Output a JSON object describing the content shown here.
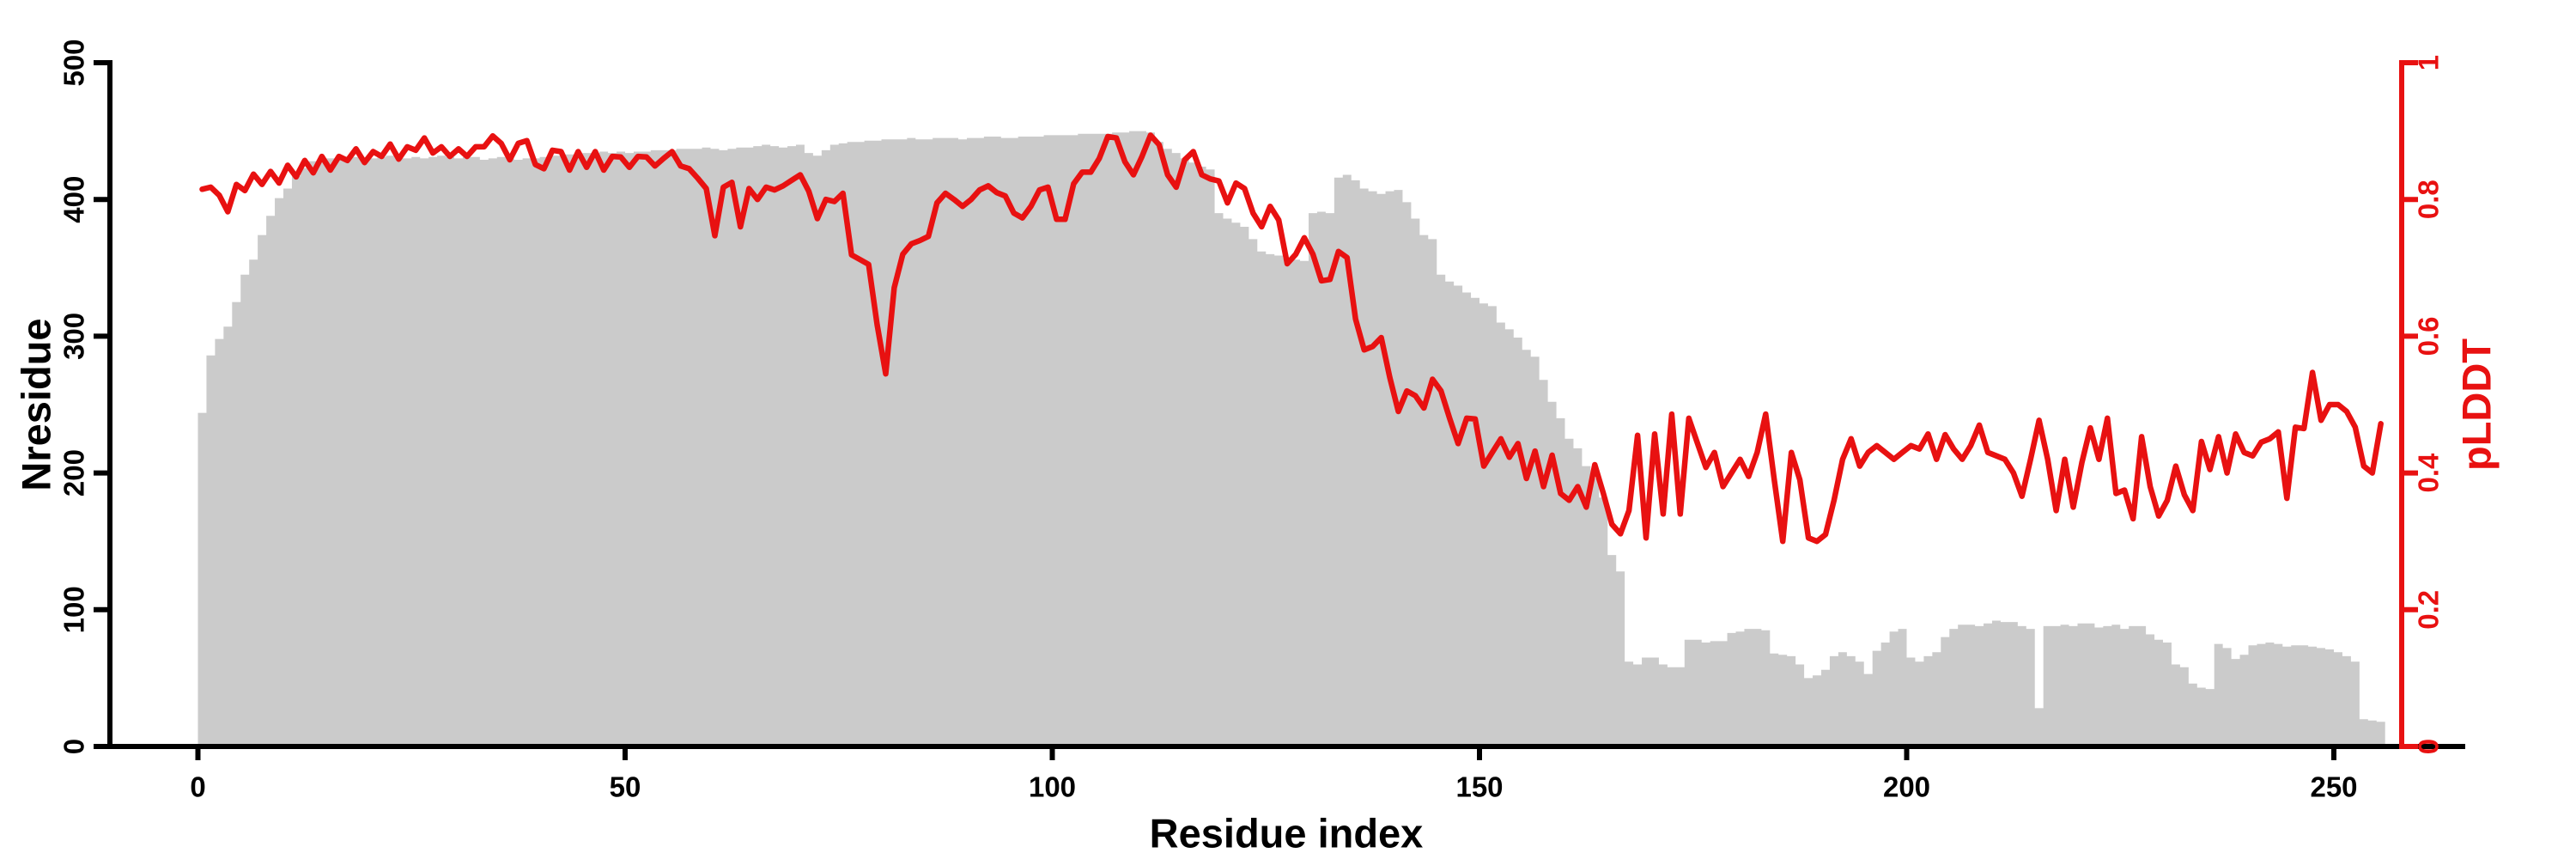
{
  "figure": {
    "background": "#ffffff"
  },
  "chart_data": {
    "type": "bar+line (dual y-axis histogram with overlaid line)",
    "title": "",
    "xlabel": "Residue index",
    "ylabel_left": "Nresidue",
    "ylabel_right": "pLDDT",
    "grid": false,
    "legend": "none",
    "x_ticks": [
      0,
      50,
      100,
      150,
      200,
      250
    ],
    "left_ticks": [
      0,
      100,
      200,
      300,
      400,
      500
    ],
    "right_ticks": [
      0,
      0.2,
      0.4,
      0.6,
      0.8,
      1
    ],
    "xlim": [
      0,
      256
    ],
    "ylim_left": [
      0,
      500
    ],
    "ylim_right": [
      0,
      1
    ],
    "colors": {
      "bar": "#cbcbcb",
      "line": "#e81111",
      "axis": "#000000",
      "right_axis": "#e81111"
    },
    "x_start": 0,
    "x_step": 1,
    "n_points": 256,
    "series": [
      {
        "name": "Nresidue",
        "type": "bar",
        "axis": "left",
        "values": [
          244,
          286,
          298,
          307,
          325,
          345,
          356,
          374,
          388,
          401,
          408,
          417,
          423,
          428,
          429,
          430,
          430,
          431,
          431,
          430,
          430,
          431,
          432,
          431,
          430,
          431,
          430,
          431,
          432,
          431,
          430,
          431,
          431,
          429,
          430,
          431,
          430,
          429,
          430,
          430,
          431,
          432,
          432,
          433,
          433,
          434,
          434,
          435,
          434,
          435,
          434,
          435,
          435,
          436,
          436,
          436,
          437,
          437,
          437,
          438,
          437,
          436,
          437,
          438,
          438,
          439,
          440,
          439,
          438,
          439,
          440,
          434,
          432,
          436,
          440,
          441,
          442,
          442,
          443,
          443,
          444,
          444,
          444,
          445,
          444,
          444,
          445,
          445,
          445,
          444,
          445,
          445,
          446,
          446,
          445,
          445,
          446,
          446,
          446,
          447,
          447,
          447,
          447,
          448,
          448,
          448,
          448,
          449,
          449,
          450,
          450,
          449,
          442,
          437,
          434,
          430,
          427,
          424,
          422,
          390,
          386,
          383,
          380,
          371,
          362,
          360,
          359,
          357,
          356,
          355,
          390,
          391,
          390,
          416,
          418,
          414,
          408,
          406,
          404,
          406,
          407,
          398,
          386,
          374,
          371,
          345,
          340,
          337,
          332,
          328,
          324,
          322,
          310,
          305,
          299,
          290,
          285,
          268,
          252,
          240,
          225,
          218,
          205,
          196,
          182,
          140,
          128,
          62,
          60,
          65,
          65,
          60,
          58,
          58,
          78,
          78,
          76,
          77,
          77,
          83,
          84,
          86,
          86,
          85,
          68,
          67,
          66,
          60,
          50,
          52,
          56,
          66,
          69,
          66,
          62,
          53,
          70,
          76,
          84,
          86,
          65,
          62,
          66,
          69,
          80,
          86,
          89,
          89,
          88,
          90,
          92,
          91,
          91,
          88,
          86,
          28,
          88,
          88,
          89,
          88,
          90,
          90,
          87,
          88,
          89,
          86,
          88,
          88,
          82,
          78,
          76,
          60,
          58,
          46,
          43,
          42,
          75,
          72,
          64,
          67,
          74,
          75,
          76,
          75,
          73,
          74,
          74,
          73,
          72,
          71,
          69,
          66,
          62,
          20,
          19,
          18
        ]
      },
      {
        "name": "pLDDT",
        "type": "line",
        "axis": "right",
        "values": [
          0.815,
          0.818,
          0.806,
          0.782,
          0.822,
          0.813,
          0.837,
          0.822,
          0.841,
          0.824,
          0.85,
          0.833,
          0.857,
          0.839,
          0.863,
          0.843,
          0.863,
          0.857,
          0.874,
          0.854,
          0.87,
          0.863,
          0.881,
          0.859,
          0.877,
          0.872,
          0.89,
          0.868,
          0.877,
          0.863,
          0.874,
          0.863,
          0.877,
          0.877,
          0.893,
          0.882,
          0.858,
          0.882,
          0.886,
          0.851,
          0.845,
          0.872,
          0.87,
          0.843,
          0.87,
          0.847,
          0.87,
          0.843,
          0.863,
          0.862,
          0.847,
          0.863,
          0.862,
          0.849,
          0.86,
          0.87,
          0.849,
          0.845,
          0.831,
          0.816,
          0.747,
          0.818,
          0.825,
          0.76,
          0.816,
          0.8,
          0.818,
          0.814,
          0.82,
          0.828,
          0.836,
          0.812,
          0.772,
          0.8,
          0.797,
          0.809,
          0.719,
          0.712,
          0.705,
          0.617,
          0.545,
          0.671,
          0.72,
          0.735,
          0.74,
          0.746,
          0.795,
          0.809,
          0.8,
          0.79,
          0.8,
          0.814,
          0.82,
          0.81,
          0.805,
          0.78,
          0.773,
          0.79,
          0.814,
          0.818,
          0.771,
          0.771,
          0.823,
          0.84,
          0.84,
          0.86,
          0.892,
          0.89,
          0.855,
          0.836,
          0.863,
          0.894,
          0.88,
          0.836,
          0.818,
          0.858,
          0.87,
          0.836,
          0.83,
          0.827,
          0.795,
          0.824,
          0.816,
          0.78,
          0.76,
          0.79,
          0.77,
          0.706,
          0.72,
          0.744,
          0.72,
          0.681,
          0.683,
          0.724,
          0.715,
          0.625,
          0.58,
          0.585,
          0.598,
          0.54,
          0.49,
          0.52,
          0.513,
          0.495,
          0.537,
          0.52,
          0.48,
          0.443,
          0.48,
          0.479,
          0.41,
          0.43,
          0.45,
          0.423,
          0.443,
          0.392,
          0.432,
          0.38,
          0.426,
          0.37,
          0.36,
          0.38,
          0.35,
          0.412,
          0.37,
          0.325,
          0.311,
          0.345,
          0.455,
          0.305,
          0.457,
          0.34,
          0.486,
          0.34,
          0.48,
          0.444,
          0.408,
          0.43,
          0.38,
          0.4,
          0.42,
          0.395,
          0.43,
          0.486,
          0.39,
          0.3,
          0.43,
          0.39,
          0.305,
          0.3,
          0.31,
          0.36,
          0.42,
          0.45,
          0.41,
          0.43,
          0.44,
          0.43,
          0.42,
          0.43,
          0.44,
          0.435,
          0.457,
          0.42,
          0.456,
          0.435,
          0.42,
          0.44,
          0.47,
          0.43,
          0.425,
          0.42,
          0.4,
          0.366,
          0.42,
          0.477,
          0.42,
          0.345,
          0.42,
          0.35,
          0.415,
          0.466,
          0.42,
          0.48,
          0.37,
          0.375,
          0.333,
          0.453,
          0.38,
          0.337,
          0.36,
          0.41,
          0.368,
          0.345,
          0.446,
          0.405,
          0.453,
          0.4,
          0.457,
          0.43,
          0.425,
          0.445,
          0.45,
          0.46,
          0.363,
          0.467,
          0.465,
          0.547,
          0.477,
          0.5,
          0.5,
          0.49,
          0.467,
          0.41,
          0.4,
          0.472
        ]
      }
    ]
  }
}
